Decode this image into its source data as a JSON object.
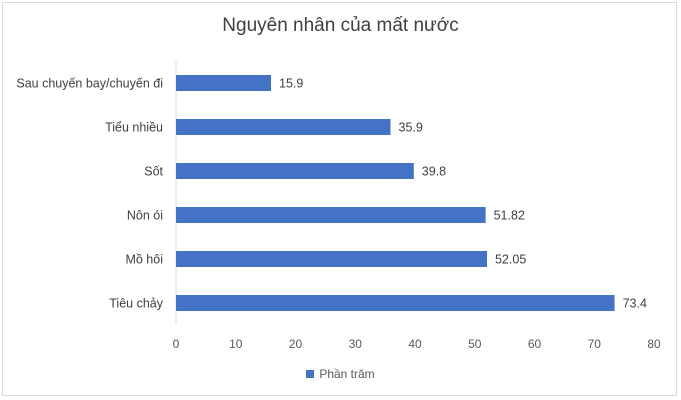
{
  "chart_data": {
    "type": "bar",
    "orientation": "horizontal",
    "title": "Nguyên nhân của mất nước",
    "categories": [
      "Sau chuyến bay/chuyến đi",
      "Tiểu nhiều",
      "Sốt",
      "Nôn ói",
      "Mồ hôi",
      "Tiêu chảy"
    ],
    "series": [
      {
        "name": "Phần trăm",
        "values": [
          15.9,
          35.9,
          39.8,
          51.82,
          52.05,
          73.4
        ]
      }
    ],
    "value_labels": [
      "15.9",
      "35.9",
      "39.8",
      "51.82",
      "52.05",
      "73.4"
    ],
    "xlim": [
      0,
      80
    ],
    "xticks": [
      "0",
      "10",
      "20",
      "30",
      "40",
      "50",
      "60",
      "70",
      "80"
    ],
    "grid": false,
    "legend_position": "bottom",
    "bar_color": "#4472c4"
  }
}
